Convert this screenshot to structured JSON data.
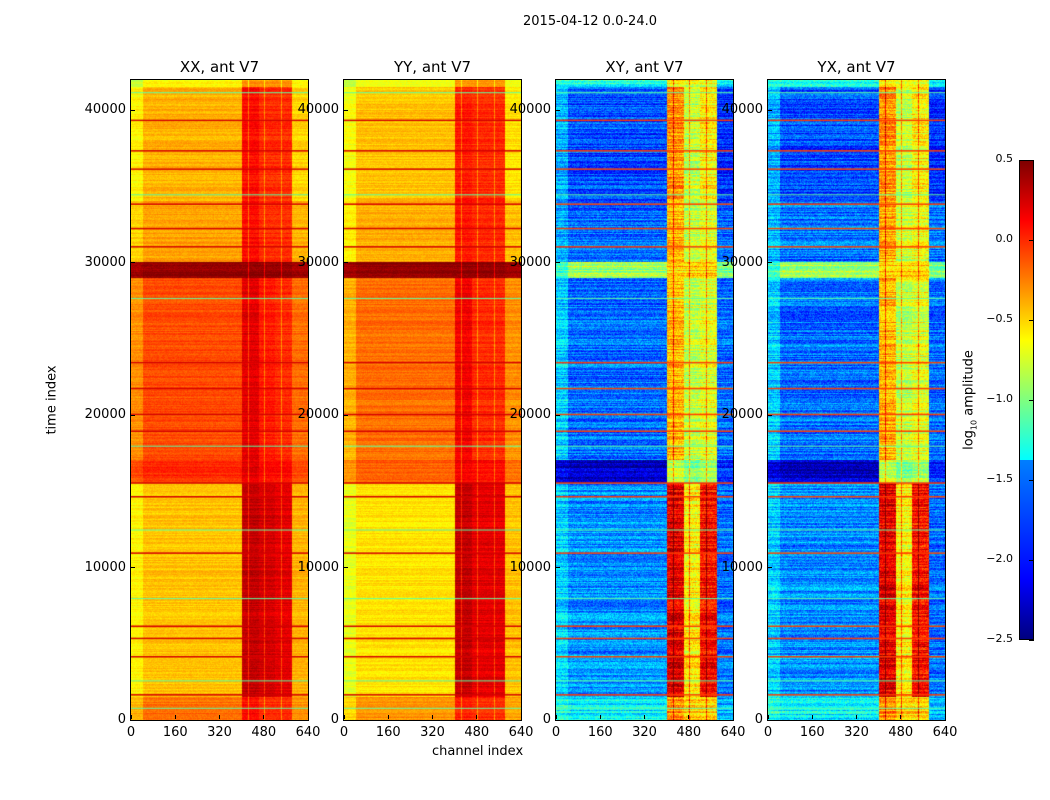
{
  "chart_data": {
    "type": "heatmap",
    "title": "2015-04-12 0.0-24.0",
    "xlabel": "channel index",
    "ylabel": "time index",
    "xlim": [
      0,
      640
    ],
    "ylim": [
      0,
      42000
    ],
    "xticks": [
      0,
      160,
      320,
      480,
      640
    ],
    "yticks": [
      0,
      10000,
      20000,
      30000,
      40000
    ],
    "channel_blocks": [
      [
        0,
        40
      ],
      [
        40,
        400
      ],
      [
        400,
        460
      ],
      [
        460,
        520
      ],
      [
        520,
        580
      ],
      [
        580,
        640
      ]
    ],
    "time_blocks": [
      [
        0,
        1500
      ],
      [
        1500,
        15500
      ],
      [
        15500,
        17000
      ],
      [
        17000,
        29000
      ],
      [
        29000,
        30000
      ],
      [
        30000,
        34000
      ],
      [
        34000,
        41500
      ],
      [
        41500,
        42000
      ]
    ],
    "flag_lines": {
      "red": [
        1700,
        4200,
        5400,
        6200,
        11000,
        14700,
        15600,
        19000,
        20100,
        21800,
        23500,
        31100,
        32300,
        33900,
        36200,
        37400,
        39400
      ],
      "cyan": [
        800,
        2600,
        8000,
        12500,
        18000,
        27700,
        34500,
        41200
      ]
    },
    "panels": [
      {
        "title": "XX, ant V7",
        "values": [
          [
            -0.4,
            -0.2,
            0.1,
            0.0,
            0.0,
            -0.3
          ],
          [
            -0.6,
            -0.45,
            0.3,
            0.25,
            0.2,
            -0.4
          ],
          [
            -0.1,
            0.0,
            0.2,
            0.1,
            0.1,
            -0.1
          ],
          [
            -0.3,
            -0.1,
            0.2,
            0.05,
            0.0,
            -0.2
          ],
          [
            0.4,
            0.45,
            0.45,
            0.45,
            0.45,
            0.4
          ],
          [
            -0.5,
            -0.35,
            0.1,
            0.0,
            0.0,
            -0.4
          ],
          [
            -0.6,
            -0.4,
            0.1,
            0.0,
            0.0,
            -0.5
          ],
          [
            -0.8,
            -0.6,
            -0.3,
            -0.3,
            -0.3,
            -0.6
          ]
        ]
      },
      {
        "title": "YY, ant V7",
        "values": [
          [
            -0.5,
            -0.3,
            0.05,
            0.0,
            0.0,
            -0.35
          ],
          [
            -0.7,
            -0.55,
            0.3,
            0.2,
            0.2,
            -0.45
          ],
          [
            -0.3,
            -0.15,
            0.15,
            0.1,
            0.1,
            -0.2
          ],
          [
            -0.4,
            -0.2,
            0.15,
            0.0,
            0.0,
            -0.3
          ],
          [
            0.4,
            0.45,
            0.45,
            0.45,
            0.45,
            0.4
          ],
          [
            -0.6,
            -0.4,
            0.05,
            0.0,
            0.0,
            -0.45
          ],
          [
            -0.65,
            -0.45,
            0.05,
            0.0,
            0.0,
            -0.55
          ],
          [
            -0.8,
            -0.65,
            -0.3,
            -0.3,
            -0.3,
            -0.65
          ]
        ]
      },
      {
        "title": "XY, ant V7",
        "values": [
          [
            -1.3,
            -1.4,
            -0.3,
            -0.5,
            -0.5,
            -1.6
          ],
          [
            -1.5,
            -1.7,
            0.2,
            -0.6,
            0.1,
            -1.8
          ],
          [
            -2.2,
            -2.3,
            -0.8,
            -1.0,
            -0.9,
            -2.0
          ],
          [
            -1.5,
            -1.8,
            -0.4,
            -0.8,
            -0.7,
            -1.8
          ],
          [
            -1.2,
            -0.9,
            -0.5,
            -0.5,
            -0.5,
            -1.0
          ],
          [
            -1.6,
            -1.8,
            -0.4,
            -0.8,
            -0.7,
            -1.8
          ],
          [
            -1.6,
            -1.9,
            -0.3,
            -0.8,
            -0.6,
            -2.0
          ],
          [
            -1.3,
            -1.3,
            -0.6,
            -0.7,
            -0.7,
            -1.4
          ]
        ]
      },
      {
        "title": "YX, ant V7",
        "values": [
          [
            -1.3,
            -1.4,
            -0.3,
            -0.5,
            -0.5,
            -1.6
          ],
          [
            -1.5,
            -1.7,
            0.2,
            -0.6,
            0.1,
            -1.8
          ],
          [
            -2.2,
            -2.3,
            -0.8,
            -1.0,
            -0.9,
            -2.0
          ],
          [
            -1.5,
            -1.8,
            -0.4,
            -0.8,
            -0.7,
            -1.8
          ],
          [
            -1.2,
            -0.9,
            -0.5,
            -0.5,
            -0.5,
            -1.0
          ],
          [
            -1.6,
            -1.8,
            -0.4,
            -0.8,
            -0.7,
            -1.8
          ],
          [
            -1.6,
            -1.9,
            -0.3,
            -0.8,
            -0.6,
            -2.0
          ],
          [
            -1.3,
            -1.3,
            -0.6,
            -0.7,
            -0.7,
            -1.4
          ]
        ]
      }
    ],
    "colorbar": {
      "label": "log10 amplitude",
      "label_base": "log",
      "label_sub": "10",
      "label_rest": " amplitude",
      "range": [
        -2.5,
        0.5
      ],
      "ticks": [
        "0.5",
        "0.0",
        "−0.5",
        "−1.0",
        "−1.5",
        "−2.0",
        "−2.5"
      ],
      "tick_values": [
        0.5,
        0,
        -0.5,
        -1,
        -1.5,
        -2,
        -2.5
      ],
      "colormap": "jet"
    }
  }
}
